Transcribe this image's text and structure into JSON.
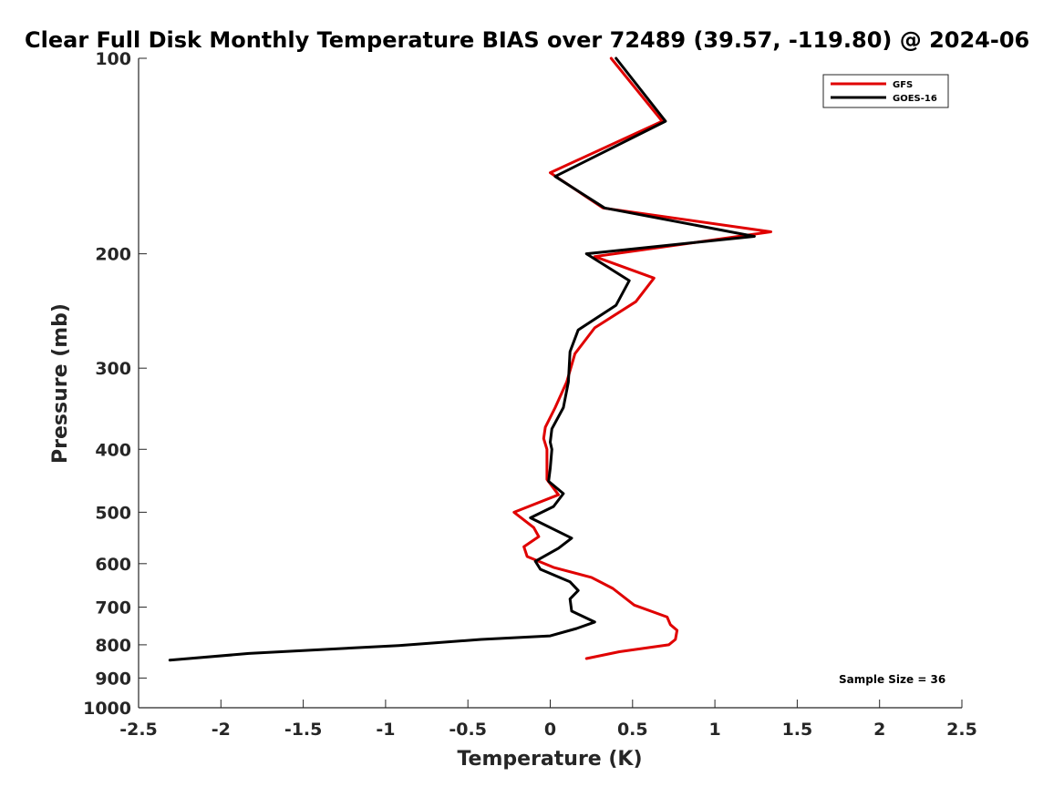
{
  "chart_data": {
    "type": "line",
    "title": "Clear Full Disk Monthly Temperature BIAS over 72489 (39.57, -119.80) @ 2024-06",
    "xlabel": "Temperature (K)",
    "ylabel": "Pressure (mb)",
    "xlim": [
      -2.5,
      2.5
    ],
    "ylim": [
      100,
      1000
    ],
    "y_scale": "log",
    "y_reversed": true,
    "x_ticks": [
      -2.5,
      -2,
      -1.5,
      -1,
      -0.5,
      0,
      0.5,
      1,
      1.5,
      2,
      2.5
    ],
    "x_tick_labels": [
      "-2.5",
      "-2",
      "-1.5",
      "-1",
      "-0.5",
      "0",
      "0.5",
      "1",
      "1.5",
      "2",
      "2.5"
    ],
    "y_ticks": [
      100,
      200,
      300,
      400,
      500,
      600,
      700,
      800,
      900,
      1000
    ],
    "y_tick_labels": [
      "100",
      "200",
      "300",
      "400",
      "500",
      "600",
      "700",
      "800",
      "900",
      "1000"
    ],
    "grid": false,
    "legend_position": "top-right",
    "annotation": "Sample Size = 36",
    "series": [
      {
        "name": "GFS",
        "color": "#e00000",
        "points": [
          [
            0.37,
            100
          ],
          [
            0.68,
            125
          ],
          [
            0.0,
            150
          ],
          [
            0.32,
            170
          ],
          [
            1.34,
            185
          ],
          [
            0.27,
            202
          ],
          [
            0.63,
            218
          ],
          [
            0.52,
            237
          ],
          [
            0.27,
            260
          ],
          [
            0.15,
            285
          ],
          [
            0.1,
            315
          ],
          [
            0.03,
            345
          ],
          [
            -0.03,
            370
          ],
          [
            -0.04,
            385
          ],
          [
            -0.02,
            400
          ],
          [
            -0.02,
            420
          ],
          [
            -0.02,
            445
          ],
          [
            0.05,
            470
          ],
          [
            -0.22,
            500
          ],
          [
            -0.1,
            528
          ],
          [
            -0.07,
            545
          ],
          [
            -0.16,
            565
          ],
          [
            -0.14,
            585
          ],
          [
            0.02,
            608
          ],
          [
            0.25,
            630
          ],
          [
            0.38,
            655
          ],
          [
            0.51,
            695
          ],
          [
            0.71,
            725
          ],
          [
            0.73,
            745
          ],
          [
            0.77,
            760
          ],
          [
            0.76,
            785
          ],
          [
            0.72,
            800
          ],
          [
            0.42,
            820
          ],
          [
            0.22,
            840
          ]
        ]
      },
      {
        "name": "GOES-16",
        "color": "#000000",
        "points": [
          [
            0.4,
            100
          ],
          [
            0.7,
            125
          ],
          [
            0.03,
            152
          ],
          [
            0.33,
            170
          ],
          [
            1.24,
            188
          ],
          [
            0.22,
            200
          ],
          [
            0.48,
            220
          ],
          [
            0.4,
            240
          ],
          [
            0.17,
            262
          ],
          [
            0.12,
            283
          ],
          [
            0.11,
            315
          ],
          [
            0.08,
            345
          ],
          [
            0.01,
            372
          ],
          [
            0.0,
            390
          ],
          [
            0.01,
            400
          ],
          [
            0.0,
            428
          ],
          [
            -0.01,
            448
          ],
          [
            0.08,
            468
          ],
          [
            0.02,
            490
          ],
          [
            -0.12,
            510
          ],
          [
            0.13,
            548
          ],
          [
            0.05,
            568
          ],
          [
            -0.09,
            595
          ],
          [
            -0.06,
            612
          ],
          [
            0.12,
            640
          ],
          [
            0.17,
            660
          ],
          [
            0.12,
            680
          ],
          [
            0.13,
            710
          ],
          [
            0.27,
            738
          ],
          [
            0.16,
            755
          ],
          [
            0.0,
            775
          ],
          [
            -0.42,
            785
          ],
          [
            -0.92,
            802
          ],
          [
            -1.83,
            825
          ],
          [
            -2.31,
            845
          ]
        ]
      }
    ]
  }
}
